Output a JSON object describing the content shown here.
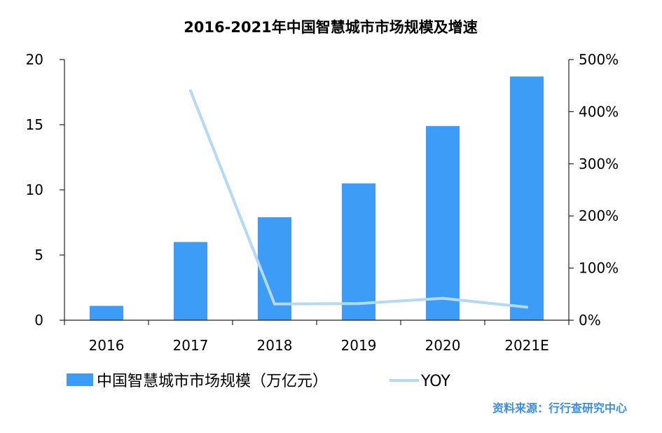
{
  "chart_data": {
    "type": "bar",
    "title": "2016-2021年中国智慧城市市场规模及增速",
    "categories": [
      "2016",
      "2017",
      "2018",
      "2019",
      "2020",
      "2021E"
    ],
    "y_left": {
      "ticks": [
        "0",
        "5",
        "10",
        "15",
        "20"
      ],
      "range": [
        0,
        20
      ]
    },
    "y_right": {
      "ticks": [
        "0%",
        "100%",
        "200%",
        "300%",
        "400%",
        "500%"
      ],
      "range": [
        0,
        500
      ]
    },
    "series": [
      {
        "name": "中国智慧城市市场规模（万亿元）",
        "type": "bar",
        "axis": "left",
        "values": [
          1.1,
          6.0,
          7.9,
          10.5,
          14.9,
          18.7
        ],
        "color": "#3d9cf5"
      },
      {
        "name": "YOY",
        "type": "line",
        "axis": "right",
        "values": [
          null,
          440,
          31,
          32,
          42,
          25
        ],
        "color": "#b3d9f7"
      }
    ],
    "legend_position": "bottom",
    "source": "资料来源：行行查研究中心"
  }
}
